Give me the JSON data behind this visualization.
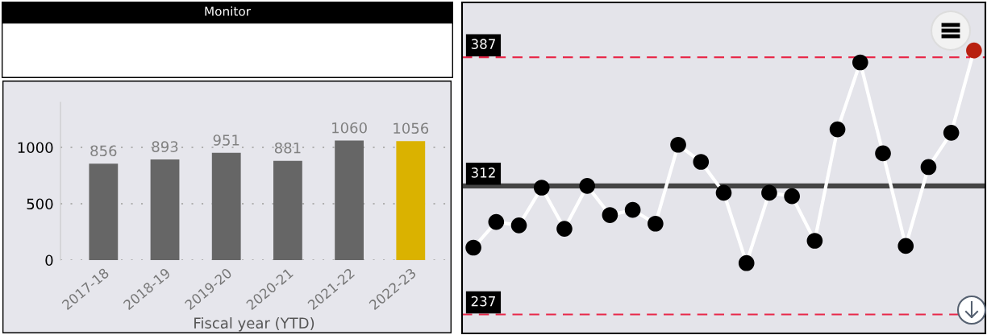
{
  "chart_data": [
    {
      "type": "other",
      "title": "Monitor"
    },
    {
      "type": "bar",
      "xlabel": "Fiscal year (YTD)",
      "categories": [
        "2017-18",
        "2018-19",
        "2019-20",
        "2020-21",
        "2021-22",
        "2022-23"
      ],
      "values": [
        856,
        893,
        951,
        881,
        1060,
        1056
      ],
      "colors": [
        "#666666",
        "#666666",
        "#666666",
        "#666666",
        "#666666",
        "#dab200"
      ],
      "ylim": [
        0,
        1400
      ],
      "yticks": [
        0,
        500,
        1000
      ],
      "grid": "y",
      "data_labels": true
    },
    {
      "type": "line",
      "categories": [
        null,
        null,
        null,
        null,
        null,
        null,
        null,
        null,
        null,
        null,
        null,
        null,
        null,
        null,
        null,
        null,
        null,
        null,
        null,
        null,
        null,
        null,
        null
      ],
      "series": [
        {
          "color": "#ffffff",
          "colors": [
            "#000000",
            "#000000",
            "#000000",
            "#000000",
            "#000000",
            "#000000",
            "#000000",
            "#000000",
            "#000000",
            "#000000",
            "#000000",
            "#000000",
            "#000000",
            "#000000",
            "#000000",
            "#000000",
            "#000000",
            "#000000",
            "#000000",
            "#000000",
            "#000000",
            "#000000",
            "#b82010"
          ],
          "values": [
            276,
            291,
            289,
            311,
            287,
            312,
            295,
            298,
            290,
            336,
            326,
            308,
            267,
            308,
            306,
            280,
            345,
            384,
            331,
            277,
            323,
            343,
            391
          ]
        }
      ],
      "ylim": [
        226,
        419
      ],
      "marker": "circle",
      "line_style": "solid",
      "ref_lines": [
        {
          "axis": "y",
          "value": 387,
          "label": "387",
          "color": "#e8294a",
          "line_style": "dashed"
        },
        {
          "axis": "y",
          "value": 312,
          "label": "312",
          "color": "#444444",
          "line_style": "solid"
        },
        {
          "axis": "y",
          "value": 237,
          "label": "237",
          "color": "#e8294a",
          "line_style": "dashed"
        }
      ]
    }
  ]
}
